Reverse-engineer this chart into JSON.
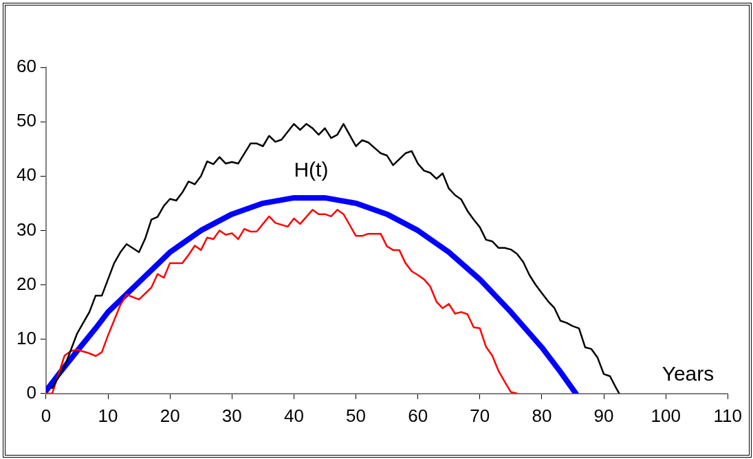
{
  "chart_data": {
    "type": "line",
    "xlabel": "Years",
    "xlim": [
      0,
      110
    ],
    "xticks": [
      0,
      10,
      20,
      30,
      40,
      50,
      60,
      70,
      80,
      90,
      100,
      110
    ],
    "ylim": [
      0,
      60
    ],
    "yticks": [
      0,
      10,
      20,
      30,
      40,
      50,
      60
    ],
    "grid": false,
    "legend": false,
    "marker": "none",
    "line_style": "solid",
    "series": [
      {
        "color": "#000000",
        "x": [
          1,
          3,
          5,
          6,
          7,
          8,
          9,
          10,
          11,
          12,
          13,
          15,
          16,
          17,
          18,
          19,
          20,
          21,
          22,
          23,
          24,
          25,
          26,
          27,
          28,
          29,
          30,
          31,
          33,
          34,
          35,
          36,
          37,
          38,
          40,
          41,
          42,
          43,
          44,
          45,
          46,
          47,
          48,
          50,
          51,
          52,
          53,
          54,
          55,
          56,
          58,
          59,
          60,
          61,
          62,
          63,
          64,
          65,
          66,
          67,
          68,
          69,
          70,
          71,
          72,
          73,
          74,
          75,
          76,
          77,
          78,
          79,
          80,
          81,
          82,
          83,
          84,
          85,
          86,
          87,
          88,
          89,
          90,
          91,
          92,
          92.5
        ],
        "values": [
          1,
          5,
          11,
          13,
          15,
          18,
          18,
          21,
          24,
          26,
          27.5,
          26,
          28.5,
          32,
          32.5,
          34.5,
          35.8,
          35.5,
          37,
          39,
          38.5,
          40,
          42.7,
          42.2,
          43.5,
          42.3,
          42.6,
          42.3,
          46,
          46,
          45.5,
          47.4,
          46.3,
          46.7,
          49.6,
          48.5,
          49.6,
          48.8,
          47.6,
          48.8,
          47,
          47.6,
          49.6,
          45.5,
          46.6,
          46.2,
          45.2,
          44.2,
          43.8,
          42,
          44.2,
          44.6,
          42.3,
          41,
          40.6,
          39.5,
          40.5,
          37.7,
          36.5,
          35.7,
          33.6,
          32,
          30.6,
          28.3,
          28,
          26.8,
          26.8,
          26.5,
          25.7,
          24.2,
          21.8,
          20,
          18.5,
          17,
          15.8,
          13.4,
          13,
          12.4,
          12,
          8.5,
          8.2,
          6.6,
          3.6,
          3.2,
          1,
          0
        ]
      },
      {
        "color": "#ff0000",
        "x": [
          0,
          1,
          2,
          3,
          4,
          5,
          7,
          8,
          9,
          10,
          11,
          12,
          13,
          15,
          17,
          18,
          19,
          20,
          22,
          23,
          24,
          25,
          26,
          27,
          28,
          29,
          30,
          31,
          32,
          33,
          34,
          35,
          36,
          37,
          39,
          40,
          41,
          43,
          44,
          45,
          46,
          47,
          48,
          50,
          51,
          52,
          54,
          55,
          56,
          57,
          58,
          59,
          60,
          61,
          62,
          63,
          64,
          65,
          66,
          67,
          68,
          69,
          70,
          71,
          72,
          73,
          74,
          75,
          76
        ],
        "values": [
          0,
          0,
          3.5,
          7,
          7.8,
          8.1,
          7.4,
          6.9,
          7.6,
          10.7,
          13.5,
          16.3,
          18.2,
          17.3,
          19.5,
          22,
          21.3,
          24,
          24,
          25.5,
          27.2,
          26.4,
          28.7,
          28.4,
          30,
          29.2,
          29.5,
          28.4,
          30.3,
          29.8,
          29.8,
          31.2,
          32.6,
          31.4,
          30.7,
          32.2,
          31.2,
          33.8,
          33,
          33,
          32.6,
          33.8,
          33,
          29,
          29,
          29.4,
          29.4,
          27.1,
          26.4,
          26.4,
          24,
          22.5,
          21.8,
          21,
          19.7,
          16.9,
          15.7,
          16.5,
          14.7,
          15,
          14.6,
          12.2,
          12,
          8.6,
          7,
          4.2,
          2.2,
          0.3,
          0
        ]
      },
      {
        "name": "H(t)",
        "color": "#0000ff",
        "x": [
          0,
          2,
          5,
          8,
          10,
          15,
          20,
          25,
          30,
          35,
          40,
          45,
          50,
          55,
          60,
          65,
          70,
          75,
          80,
          83,
          85.5
        ],
        "values": [
          0.5,
          3.5,
          7.8,
          12,
          15,
          20.5,
          26,
          30,
          33,
          35,
          36,
          36,
          35,
          33,
          30,
          26,
          21,
          15,
          8.5,
          4,
          0
        ]
      }
    ]
  }
}
